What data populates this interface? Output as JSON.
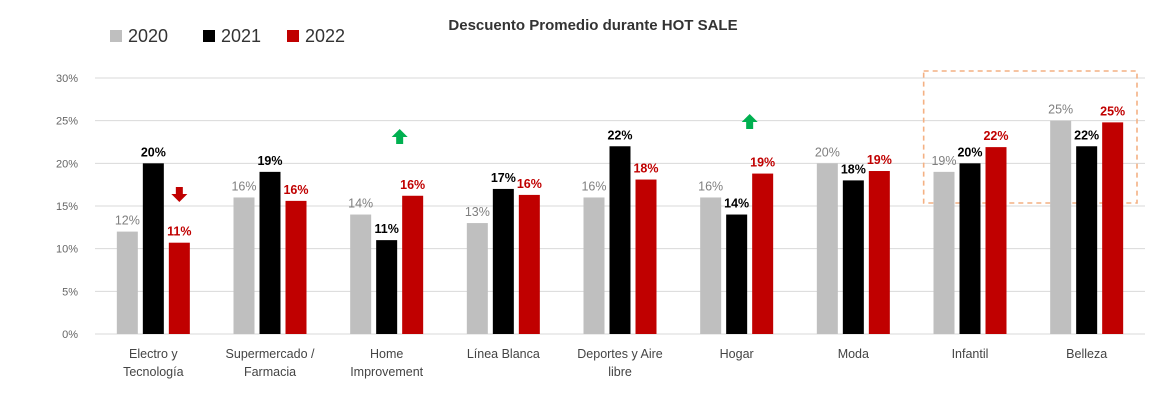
{
  "chart_data": {
    "type": "bar",
    "title": "Descuento Promedio durante HOT SALE",
    "xlabel": "",
    "ylabel": "",
    "ylim": [
      0,
      30
    ],
    "yticks": [
      0,
      5,
      10,
      15,
      20,
      25,
      30
    ],
    "ytick_labels": [
      "0%",
      "5%",
      "10%",
      "15%",
      "20%",
      "25%",
      "30%"
    ],
    "grid": true,
    "legend_position": "top-left",
    "categories": [
      [
        "Electro y",
        "Tecnología"
      ],
      [
        "Supermercado /",
        "Farmacia"
      ],
      [
        "Home",
        "Improvement"
      ],
      [
        "Línea Blanca"
      ],
      [
        "Deportes y Aire",
        "libre"
      ],
      [
        "Hogar"
      ],
      [
        "Moda"
      ],
      [
        "Infantil"
      ],
      [
        "Belleza"
      ]
    ],
    "series": [
      {
        "name": "2020",
        "color": "#bfbfbf",
        "label_color": "#7f7f7f",
        "values": [
          12,
          16,
          14,
          13,
          16,
          16,
          20,
          19,
          25
        ],
        "labels": [
          "12%",
          "16%",
          "14%",
          "13%",
          "16%",
          "16%",
          "20%",
          "19%",
          "25%"
        ]
      },
      {
        "name": "2021",
        "color": "#000000",
        "label_color": "#000000",
        "values": [
          20,
          19,
          11,
          17,
          22,
          14,
          18,
          20,
          22
        ],
        "labels": [
          "20%",
          "19%",
          "11%",
          "17%",
          "22%",
          "14%",
          "18%",
          "20%",
          "22%"
        ]
      },
      {
        "name": "2022",
        "color": "#c00000",
        "label_color": "#c00000",
        "values": [
          10.7,
          15.6,
          16.2,
          16.3,
          18.1,
          18.8,
          19.1,
          21.9,
          24.8
        ],
        "labels": [
          "11%",
          "16%",
          "16%",
          "16%",
          "18%",
          "19%",
          "19%",
          "22%",
          "25%"
        ]
      }
    ],
    "annotations": [
      {
        "type": "arrow-down-icon",
        "category_index": 0,
        "color": "#c00000"
      },
      {
        "type": "arrow-up-icon",
        "category_index": 2,
        "color": "#00b050"
      },
      {
        "type": "arrow-up-icon",
        "category_index": 5,
        "color": "#00b050"
      },
      {
        "type": "highlight-box",
        "category_range": [
          7,
          8
        ],
        "color": "#f4b183"
      }
    ]
  }
}
